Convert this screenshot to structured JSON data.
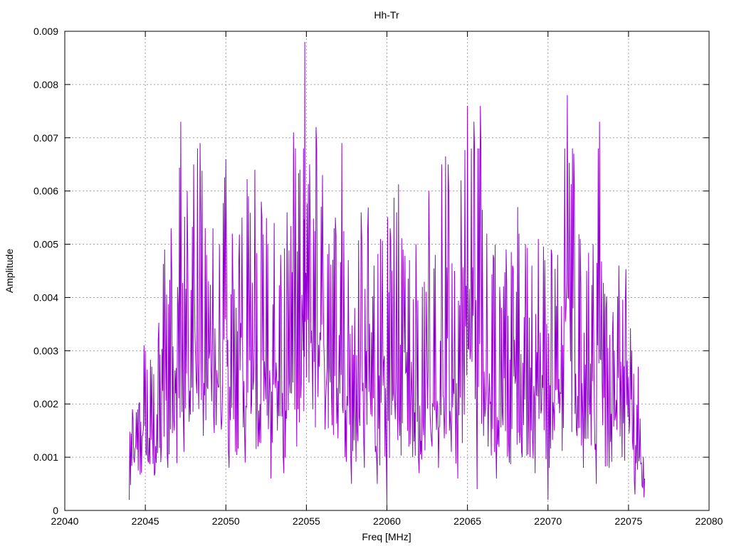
{
  "chart_data": {
    "type": "line",
    "title": "Hh-Tr",
    "xlabel": "Freq [MHz]",
    "ylabel": "Amplitude",
    "xlim": [
      22040,
      22080
    ],
    "ylim": [
      0,
      0.009
    ],
    "xticks": [
      22040,
      22045,
      22050,
      22055,
      22060,
      22065,
      22070,
      22075,
      22080
    ],
    "yticks": [
      0,
      0.001,
      0.002,
      0.003,
      0.004,
      0.005,
      0.006,
      0.007,
      0.008,
      0.009
    ],
    "ytick_labels": [
      "0",
      "0.001",
      "0.002",
      "0.003",
      "0.004",
      "0.005",
      "0.006",
      "0.007",
      "0.008",
      "0.009"
    ],
    "grid": true,
    "series": [
      {
        "color": "#9400d3",
        "x_range": [
          22044.0,
          22076.0
        ],
        "points": [
          [
            22044.0,
            0.0002
          ],
          [
            22044.2,
            0.0019
          ],
          [
            22044.4,
            0.0012
          ],
          [
            22044.6,
            0.002
          ],
          [
            22044.8,
            0.0014
          ],
          [
            22045.0,
            0.003
          ],
          [
            22045.2,
            0.0009
          ],
          [
            22045.4,
            0.0027
          ],
          [
            22045.6,
            0.0007
          ],
          [
            22045.8,
            0.0032
          ],
          [
            22046.0,
            0.0012
          ],
          [
            22046.2,
            0.0049
          ],
          [
            22046.4,
            0.0008
          ],
          [
            22046.6,
            0.0053
          ],
          [
            22046.8,
            0.0015
          ],
          [
            22047.0,
            0.0042
          ],
          [
            22047.2,
            0.0073
          ],
          [
            22047.4,
            0.0011
          ],
          [
            22047.6,
            0.006
          ],
          [
            22047.8,
            0.0018
          ],
          [
            22048.0,
            0.0065
          ],
          [
            22048.2,
            0.0022
          ],
          [
            22048.4,
            0.0069
          ],
          [
            22048.6,
            0.0014
          ],
          [
            22048.8,
            0.0048
          ],
          [
            22049.0,
            0.003
          ],
          [
            22049.2,
            0.0053
          ],
          [
            22049.4,
            0.0016
          ],
          [
            22049.6,
            0.005
          ],
          [
            22049.8,
            0.0024
          ],
          [
            22050.0,
            0.0066
          ],
          [
            22050.2,
            0.0008
          ],
          [
            22050.4,
            0.0052
          ],
          [
            22050.6,
            0.0011
          ],
          [
            22050.8,
            0.0046
          ],
          [
            22051.0,
            0.0055
          ],
          [
            22051.2,
            0.0009
          ],
          [
            22051.4,
            0.0059
          ],
          [
            22051.6,
            0.002
          ],
          [
            22051.8,
            0.0064
          ],
          [
            22052.0,
            0.0012
          ],
          [
            22052.2,
            0.0058
          ],
          [
            22052.4,
            0.0028
          ],
          [
            22052.6,
            0.005
          ],
          [
            22052.8,
            0.0006
          ],
          [
            22053.0,
            0.0054
          ],
          [
            22053.2,
            0.0015
          ],
          [
            22053.4,
            0.0048
          ],
          [
            22053.6,
            0.0007
          ],
          [
            22053.8,
            0.0056
          ],
          [
            22054.0,
            0.0022
          ],
          [
            22054.2,
            0.0071
          ],
          [
            22054.4,
            0.0012
          ],
          [
            22054.6,
            0.0064
          ],
          [
            22054.8,
            0.003
          ],
          [
            22054.9,
            0.0088
          ],
          [
            22055.0,
            0.0025
          ],
          [
            22055.2,
            0.0065
          ],
          [
            22055.4,
            0.0019
          ],
          [
            22055.6,
            0.0072
          ],
          [
            22055.8,
            0.0027
          ],
          [
            22056.0,
            0.0063
          ],
          [
            22056.2,
            0.0021
          ],
          [
            22056.4,
            0.005
          ],
          [
            22056.6,
            0.0016
          ],
          [
            22056.8,
            0.0055
          ],
          [
            22057.0,
            0.0024
          ],
          [
            22057.2,
            0.0069
          ],
          [
            22057.4,
            0.001
          ],
          [
            22057.6,
            0.0047
          ],
          [
            22057.8,
            0.0005
          ],
          [
            22058.0,
            0.0038
          ],
          [
            22058.2,
            0.0013
          ],
          [
            22058.4,
            0.0056
          ],
          [
            22058.6,
            0.0008
          ],
          [
            22058.8,
            0.0052
          ],
          [
            22059.0,
            0.0018
          ],
          [
            22059.2,
            0.0046
          ],
          [
            22059.4,
            0.0005
          ],
          [
            22059.6,
            0.0051
          ],
          [
            22059.8,
            0.0028
          ],
          [
            22060.0,
            0.0001
          ],
          [
            22060.2,
            0.0053
          ],
          [
            22060.4,
            0.0022
          ],
          [
            22060.6,
            0.0056
          ],
          [
            22060.8,
            0.0014
          ],
          [
            22061.0,
            0.0049
          ],
          [
            22061.2,
            0.0026
          ],
          [
            22061.4,
            0.0047
          ],
          [
            22061.6,
            0.001
          ],
          [
            22061.8,
            0.005
          ],
          [
            22062.0,
            0.0007
          ],
          [
            22062.2,
            0.0042
          ],
          [
            22062.4,
            0.0022
          ],
          [
            22062.6,
            0.006
          ],
          [
            22062.8,
            0.0012
          ],
          [
            22063.0,
            0.0048
          ],
          [
            22063.2,
            0.0008
          ],
          [
            22063.4,
            0.0065
          ],
          [
            22063.6,
            0.0019
          ],
          [
            22063.8,
            0.0065
          ],
          [
            22064.0,
            0.0011
          ],
          [
            22064.2,
            0.0045
          ],
          [
            22064.4,
            0.0006
          ],
          [
            22064.6,
            0.0062
          ],
          [
            22064.8,
            0.0018
          ],
          [
            22065.0,
            0.0076
          ],
          [
            22065.2,
            0.003
          ],
          [
            22065.4,
            0.0073
          ],
          [
            22065.6,
            0.0004
          ],
          [
            22065.8,
            0.0076
          ],
          [
            22066.0,
            0.0014
          ],
          [
            22066.2,
            0.0052
          ],
          [
            22066.4,
            0.002
          ],
          [
            22066.6,
            0.0048
          ],
          [
            22066.8,
            0.0006
          ],
          [
            22067.0,
            0.0042
          ],
          [
            22067.2,
            0.0016
          ],
          [
            22067.4,
            0.0049
          ],
          [
            22067.6,
            0.0009
          ],
          [
            22067.8,
            0.0046
          ],
          [
            22068.0,
            0.0025
          ],
          [
            22068.2,
            0.0052
          ],
          [
            22068.4,
            0.001
          ],
          [
            22068.6,
            0.005
          ],
          [
            22068.8,
            0.0018
          ],
          [
            22069.0,
            0.0046
          ],
          [
            22069.2,
            0.0007
          ],
          [
            22069.4,
            0.0051
          ],
          [
            22069.6,
            0.0019
          ],
          [
            22069.8,
            0.0047
          ],
          [
            22070.0,
            0.0002
          ],
          [
            22070.2,
            0.0049
          ],
          [
            22070.4,
            0.0015
          ],
          [
            22070.6,
            0.0048
          ],
          [
            22070.8,
            0.0022
          ],
          [
            22071.0,
            0.0039
          ],
          [
            22071.2,
            0.0078
          ],
          [
            22071.4,
            0.0028
          ],
          [
            22071.6,
            0.0067
          ],
          [
            22071.8,
            0.0014
          ],
          [
            22072.0,
            0.0051
          ],
          [
            22072.2,
            0.0008
          ],
          [
            22072.4,
            0.0045
          ],
          [
            22072.6,
            0.0018
          ],
          [
            22072.8,
            0.005
          ],
          [
            22073.0,
            0.0005
          ],
          [
            22073.2,
            0.0073
          ],
          [
            22073.4,
            0.0016
          ],
          [
            22073.6,
            0.0038
          ],
          [
            22073.8,
            0.0008
          ],
          [
            22074.0,
            0.0033
          ],
          [
            22074.2,
            0.0018
          ],
          [
            22074.4,
            0.0046
          ],
          [
            22074.6,
            0.001
          ],
          [
            22074.8,
            0.0039
          ],
          [
            22075.0,
            0.0025
          ],
          [
            22075.2,
            0.003
          ],
          [
            22075.4,
            0.0003
          ],
          [
            22075.6,
            0.0027
          ],
          [
            22075.8,
            0.0009
          ],
          [
            22076.0,
            0.0006
          ]
        ]
      }
    ]
  }
}
